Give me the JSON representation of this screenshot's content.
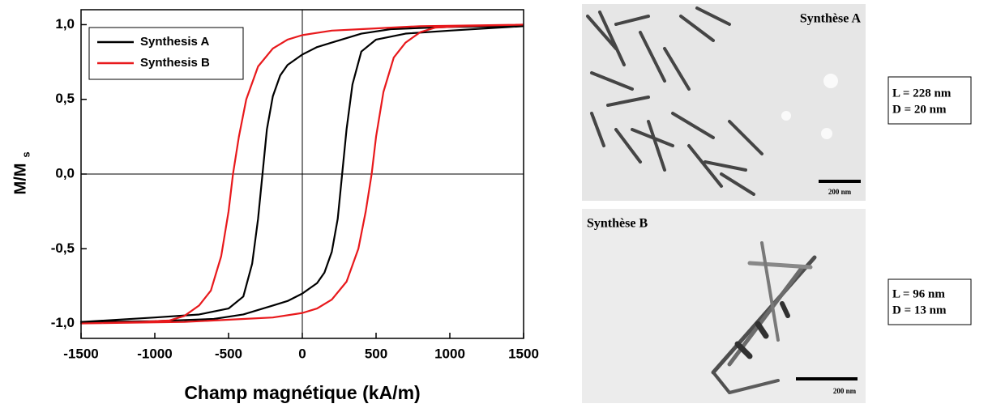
{
  "chart_data": {
    "type": "line",
    "x_label": "Champ magnétique (kA/m)",
    "y_label": "M/M",
    "y_label_sub": "s",
    "xlim": [
      -1500,
      1500
    ],
    "xticks": [
      -1500,
      -1000,
      -500,
      0,
      500,
      1000,
      1500
    ],
    "ylim": [
      -1.1,
      1.1
    ],
    "yticks": [
      {
        "value": -1.0,
        "label": "-1,0"
      },
      {
        "value": -0.5,
        "label": "-0,5"
      },
      {
        "value": 0.0,
        "label": "0,0"
      },
      {
        "value": 0.5,
        "label": "0,5"
      },
      {
        "value": 1.0,
        "label": "1,0"
      }
    ],
    "legend": "upper left",
    "series": [
      {
        "name": "Synthesis A",
        "color": "#000000",
        "x": [
          1500,
          1000,
          600,
          400,
          300,
          200,
          100,
          0,
          -100,
          -150,
          -200,
          -240,
          -270,
          -300,
          -340,
          -400,
          -500,
          -700,
          -1000,
          -1500,
          -1000,
          -600,
          -400,
          -300,
          -200,
          -100,
          0,
          100,
          150,
          200,
          240,
          270,
          300,
          340,
          400,
          500,
          700,
          1000,
          1500
        ],
        "values": [
          0.99,
          0.985,
          0.97,
          0.94,
          0.91,
          0.88,
          0.85,
          0.8,
          0.73,
          0.66,
          0.52,
          0.3,
          0.0,
          -0.3,
          -0.6,
          -0.82,
          -0.9,
          -0.94,
          -0.96,
          -0.99,
          -0.985,
          -0.97,
          -0.94,
          -0.91,
          -0.88,
          -0.85,
          -0.8,
          -0.73,
          -0.66,
          -0.52,
          -0.3,
          0.0,
          0.3,
          0.6,
          0.82,
          0.9,
          0.94,
          0.96,
          0.99
        ]
      },
      {
        "name": "Synthesis B",
        "color": "#e8191c",
        "x": [
          1500,
          800,
          400,
          200,
          0,
          -100,
          -200,
          -300,
          -380,
          -430,
          -470,
          -500,
          -550,
          -620,
          -700,
          -800,
          -900,
          -1100,
          -1500,
          -800,
          -400,
          -200,
          0,
          100,
          200,
          300,
          380,
          430,
          470,
          500,
          550,
          620,
          700,
          800,
          900,
          1100,
          1500
        ],
        "values": [
          1.0,
          0.99,
          0.97,
          0.96,
          0.93,
          0.9,
          0.84,
          0.72,
          0.5,
          0.25,
          0.0,
          -0.25,
          -0.55,
          -0.78,
          -0.88,
          -0.95,
          -0.98,
          -0.99,
          -1.0,
          -0.99,
          -0.97,
          -0.96,
          -0.93,
          -0.9,
          -0.84,
          -0.72,
          -0.5,
          -0.25,
          0.0,
          0.25,
          0.55,
          0.78,
          0.88,
          0.95,
          0.98,
          0.99,
          1.0
        ]
      }
    ]
  },
  "images": [
    {
      "title": "Synthèse A",
      "scale_bar": "200 nm",
      "length": "L = 228 nm",
      "diameter": "D = 20 nm"
    },
    {
      "title": "Synthèse B",
      "scale_bar": "200 nm",
      "length": "L = 96 nm",
      "diameter": "D = 13 nm"
    }
  ]
}
